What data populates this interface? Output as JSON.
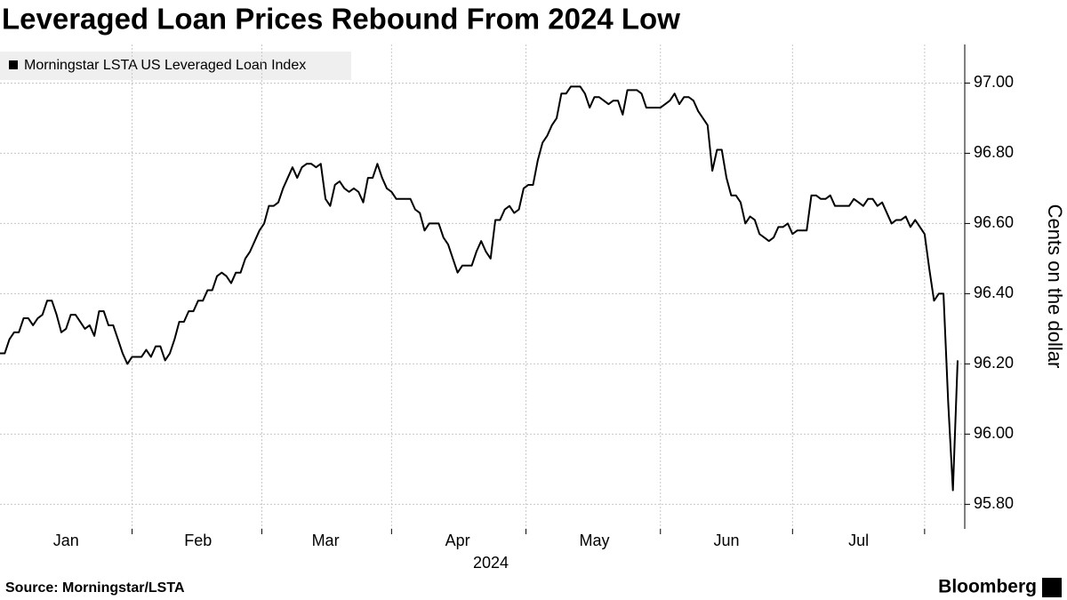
{
  "chart_data": {
    "type": "line",
    "title": "Leveraged Loan Prices Rebound From 2024 Low",
    "xlabel": "2024",
    "ylabel": "Cents on the dollar",
    "source": "Source: Morningstar/LSTA",
    "brand": "Bloomberg",
    "categories": [
      null,
      null,
      null,
      null,
      null,
      null,
      null,
      null,
      null,
      null,
      null,
      null,
      null,
      null,
      "Jan",
      null,
      null,
      null,
      null,
      null,
      null,
      null,
      null,
      null,
      null,
      null,
      null,
      null,
      null,
      null,
      null,
      null,
      null,
      null,
      null,
      null,
      null,
      null,
      null,
      null,
      null,
      null,
      "Feb",
      null,
      null,
      null,
      null,
      null,
      null,
      null,
      null,
      null,
      null,
      null,
      null,
      null,
      null,
      null,
      null,
      null,
      null,
      null,
      null,
      null,
      null,
      null,
      null,
      null,
      null,
      "Mar",
      null,
      null,
      null,
      null,
      null,
      null,
      null,
      null,
      null,
      null,
      null,
      null,
      null,
      null,
      null,
      null,
      null,
      null,
      null,
      null,
      null,
      null,
      null,
      null,
      null,
      null,
      null,
      "Apr",
      null,
      null,
      null,
      null,
      null,
      null,
      null,
      null,
      null,
      null,
      null,
      null,
      null,
      null,
      null,
      null,
      null,
      null,
      null,
      null,
      null,
      null,
      null,
      null,
      null,
      null,
      null,
      null,
      "May",
      null,
      null,
      null,
      null,
      null,
      null,
      null,
      null,
      null,
      null,
      null,
      null,
      null,
      null,
      null,
      null,
      null,
      null,
      null,
      null,
      null,
      null,
      null,
      null,
      null,
      null,
      null,
      "Jun",
      null,
      null,
      null,
      null,
      null,
      null,
      null,
      null,
      null,
      null,
      null,
      null,
      null,
      null,
      null,
      null,
      null,
      null,
      null,
      null,
      null,
      null,
      null,
      null,
      null,
      null,
      null,
      "Jul",
      null,
      null,
      null,
      null,
      null,
      null,
      null,
      null,
      null,
      null,
      null,
      null,
      null,
      null,
      null,
      null,
      null,
      null,
      null,
      null,
      null
    ],
    "series": [
      {
        "name": "Morningstar LSTA US Leveraged Loan Index",
        "color": "#000000",
        "values": [
          96.23,
          96.23,
          96.27,
          96.29,
          96.29,
          96.33,
          96.33,
          96.31,
          96.33,
          96.34,
          96.38,
          96.38,
          96.34,
          96.29,
          96.3,
          96.34,
          96.34,
          96.32,
          96.3,
          96.31,
          96.28,
          96.35,
          96.35,
          96.31,
          96.31,
          96.27,
          96.23,
          96.2,
          96.22,
          96.22,
          96.22,
          96.24,
          96.22,
          96.25,
          96.25,
          96.21,
          96.23,
          96.27,
          96.32,
          96.32,
          96.35,
          96.35,
          96.38,
          96.38,
          96.41,
          96.41,
          96.45,
          96.46,
          96.45,
          96.43,
          96.46,
          96.46,
          96.5,
          96.52,
          96.55,
          96.58,
          96.6,
          96.65,
          96.65,
          96.66,
          96.7,
          96.73,
          96.76,
          96.73,
          96.76,
          96.77,
          96.77,
          96.76,
          96.77,
          96.67,
          96.65,
          96.71,
          96.72,
          96.7,
          96.69,
          96.7,
          96.69,
          96.66,
          96.73,
          96.73,
          96.77,
          96.73,
          96.7,
          96.69,
          96.67,
          96.67,
          96.67,
          96.67,
          96.64,
          96.63,
          96.58,
          96.6,
          96.6,
          96.6,
          96.56,
          96.54,
          96.5,
          96.46,
          96.48,
          96.48,
          96.48,
          96.52,
          96.55,
          96.52,
          96.5,
          96.61,
          96.61,
          96.64,
          96.65,
          96.63,
          96.64,
          96.7,
          96.71,
          96.71,
          96.78,
          96.83,
          96.85,
          96.88,
          96.9,
          96.97,
          96.97,
          96.99,
          96.99,
          96.99,
          96.97,
          96.93,
          96.96,
          96.96,
          96.95,
          96.94,
          96.95,
          96.95,
          96.91,
          96.98,
          96.98,
          96.98,
          96.97,
          96.93,
          96.93,
          96.93,
          96.93,
          96.94,
          96.95,
          96.97,
          96.94,
          96.96,
          96.96,
          96.95,
          96.92,
          96.9,
          96.88,
          96.75,
          96.81,
          96.81,
          96.73,
          96.68,
          96.68,
          96.66,
          96.6,
          96.62,
          96.61,
          96.57,
          96.56,
          96.55,
          96.56,
          96.59,
          96.59,
          96.6,
          96.57,
          96.58,
          96.58,
          96.58,
          96.68,
          96.68,
          96.67,
          96.67,
          96.68,
          96.65,
          96.65,
          96.65,
          96.65,
          96.67,
          96.66,
          96.65,
          96.67,
          96.67,
          96.65,
          96.66,
          96.63,
          96.6,
          96.61,
          96.61,
          96.62,
          96.59,
          96.61,
          96.59,
          96.57,
          96.47,
          96.38,
          96.4,
          96.4,
          96.09,
          95.84,
          96.21
        ]
      }
    ],
    "ylim": [
      95.73,
      97.11
    ],
    "yticks": [
      {
        "value": 95.8,
        "label": "95.80"
      },
      {
        "value": 96,
        "label": "96.00"
      },
      {
        "value": 96.2,
        "label": "96.20"
      },
      {
        "value": 96.4,
        "label": "96.40"
      },
      {
        "value": 96.6,
        "label": "96.60"
      },
      {
        "value": 96.8,
        "label": "96.80"
      },
      {
        "value": 97,
        "label": "97.00"
      }
    ],
    "grid": true
  }
}
